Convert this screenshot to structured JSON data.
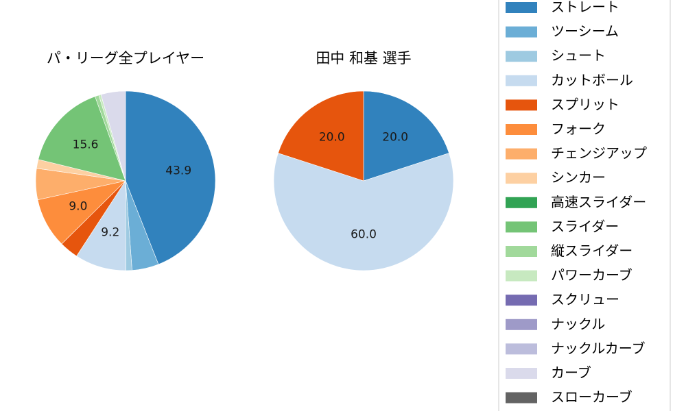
{
  "chart_data": [
    {
      "type": "pie",
      "title": "パ・リーグ全プレイヤー",
      "categories": [
        "ストレート",
        "ツーシーム",
        "シュート",
        "カットボール",
        "スプリット",
        "フォーク",
        "チェンジアップ",
        "シンカー",
        "高速スライダー",
        "スライダー",
        "縦スライダー",
        "パワーカーブ",
        "スクリュー",
        "ナックル",
        "ナックルカーブ",
        "カーブ",
        "スローカーブ"
      ],
      "values": [
        43.9,
        4.8,
        1.1,
        9.2,
        3.4,
        9.0,
        5.6,
        1.6,
        0.0,
        15.6,
        0.7,
        0.4,
        0.0,
        0.0,
        0.0,
        4.4,
        0.0
      ],
      "data_labels": [
        "43.9",
        "",
        "",
        "9.2",
        "",
        "9.0",
        "",
        "",
        "",
        "15.6",
        "",
        "",
        "",
        "",
        "",
        "",
        ""
      ]
    },
    {
      "type": "pie",
      "title": "田中 和基  選手",
      "categories": [
        "ストレート",
        "ツーシーム",
        "シュート",
        "カットボール",
        "スプリット",
        "フォーク",
        "チェンジアップ",
        "シンカー",
        "高速スライダー",
        "スライダー",
        "縦スライダー",
        "パワーカーブ",
        "スクリュー",
        "ナックル",
        "ナックルカーブ",
        "カーブ",
        "スローカーブ"
      ],
      "values": [
        20.0,
        0,
        0,
        60.0,
        20.0,
        0,
        0,
        0,
        0,
        0,
        0,
        0,
        0,
        0,
        0,
        0,
        0
      ],
      "data_labels": [
        "20.0",
        "",
        "",
        "60.0",
        "20.0",
        "",
        "",
        "",
        "",
        "",
        "",
        "",
        "",
        "",
        "",
        "",
        ""
      ]
    }
  ],
  "legend": {
    "placement": "right",
    "entries": [
      "ストレート",
      "ツーシーム",
      "シュート",
      "カットボール",
      "スプリット",
      "フォーク",
      "チェンジアップ",
      "シンカー",
      "高速スライダー",
      "スライダー",
      "縦スライダー",
      "パワーカーブ",
      "スクリュー",
      "ナックル",
      "ナックルカーブ",
      "カーブ",
      "スローカーブ"
    ],
    "colors": [
      "#3182bd",
      "#6baed6",
      "#9ecae1",
      "#c6dbef",
      "#e6550d",
      "#fd8d3c",
      "#fdae6b",
      "#fdd0a2",
      "#31a354",
      "#74c476",
      "#a1d99b",
      "#c7e9c0",
      "#756bb1",
      "#9e9ac8",
      "#bcbddc",
      "#dadaeb",
      "#636363"
    ]
  }
}
